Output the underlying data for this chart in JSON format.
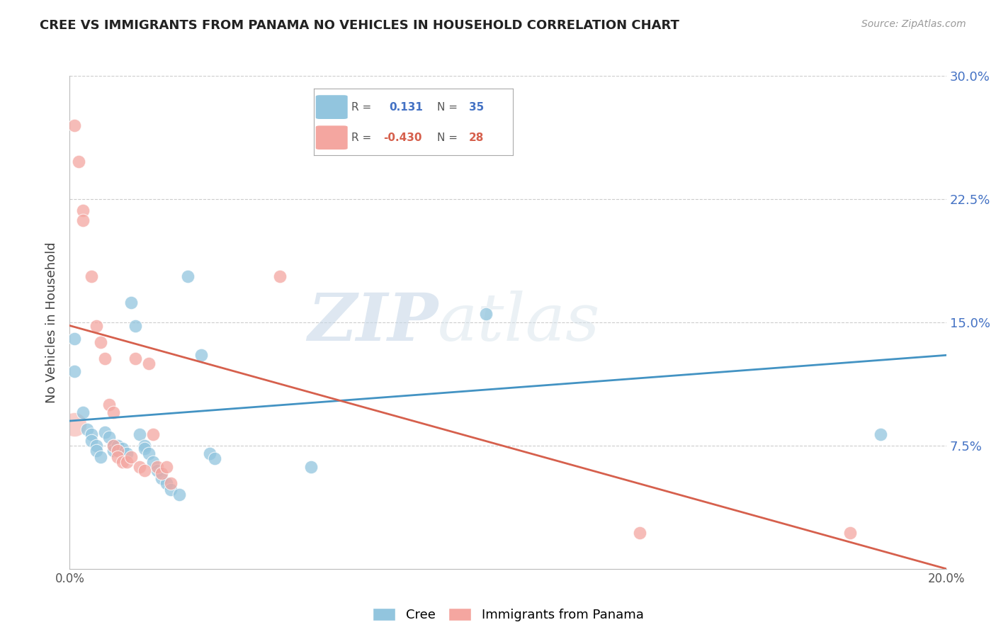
{
  "title": "CREE VS IMMIGRANTS FROM PANAMA NO VEHICLES IN HOUSEHOLD CORRELATION CHART",
  "source": "Source: ZipAtlas.com",
  "ylabel": "No Vehicles in Household",
  "xlim": [
    0.0,
    0.2
  ],
  "ylim": [
    0.0,
    0.3
  ],
  "yticks": [
    0.0,
    0.075,
    0.15,
    0.225,
    0.3
  ],
  "ytick_labels": [
    "",
    "7.5%",
    "15.0%",
    "22.5%",
    "30.0%"
  ],
  "blue_color": "#92c5de",
  "pink_color": "#f4a6a0",
  "line_blue": "#4393c3",
  "line_pink": "#d6604d",
  "watermark_zip": "ZIP",
  "watermark_atlas": "atlas",
  "blue_dots": [
    [
      0.001,
      0.14
    ],
    [
      0.001,
      0.12
    ],
    [
      0.003,
      0.095
    ],
    [
      0.004,
      0.085
    ],
    [
      0.005,
      0.082
    ],
    [
      0.005,
      0.078
    ],
    [
      0.006,
      0.075
    ],
    [
      0.006,
      0.072
    ],
    [
      0.007,
      0.068
    ],
    [
      0.008,
      0.083
    ],
    [
      0.009,
      0.08
    ],
    [
      0.01,
      0.075
    ],
    [
      0.01,
      0.072
    ],
    [
      0.011,
      0.075
    ],
    [
      0.012,
      0.073
    ],
    [
      0.013,
      0.07
    ],
    [
      0.014,
      0.162
    ],
    [
      0.015,
      0.148
    ],
    [
      0.016,
      0.082
    ],
    [
      0.017,
      0.075
    ],
    [
      0.017,
      0.073
    ],
    [
      0.018,
      0.07
    ],
    [
      0.019,
      0.065
    ],
    [
      0.02,
      0.06
    ],
    [
      0.021,
      0.055
    ],
    [
      0.022,
      0.052
    ],
    [
      0.023,
      0.048
    ],
    [
      0.025,
      0.045
    ],
    [
      0.027,
      0.178
    ],
    [
      0.03,
      0.13
    ],
    [
      0.032,
      0.07
    ],
    [
      0.033,
      0.067
    ],
    [
      0.055,
      0.062
    ],
    [
      0.095,
      0.155
    ],
    [
      0.185,
      0.082
    ]
  ],
  "pink_dots": [
    [
      0.001,
      0.27
    ],
    [
      0.002,
      0.248
    ],
    [
      0.003,
      0.218
    ],
    [
      0.003,
      0.212
    ],
    [
      0.005,
      0.178
    ],
    [
      0.006,
      0.148
    ],
    [
      0.007,
      0.138
    ],
    [
      0.008,
      0.128
    ],
    [
      0.009,
      0.1
    ],
    [
      0.01,
      0.095
    ],
    [
      0.01,
      0.075
    ],
    [
      0.011,
      0.072
    ],
    [
      0.011,
      0.068
    ],
    [
      0.012,
      0.065
    ],
    [
      0.013,
      0.065
    ],
    [
      0.014,
      0.068
    ],
    [
      0.015,
      0.128
    ],
    [
      0.016,
      0.062
    ],
    [
      0.017,
      0.06
    ],
    [
      0.018,
      0.125
    ],
    [
      0.019,
      0.082
    ],
    [
      0.02,
      0.062
    ],
    [
      0.021,
      0.058
    ],
    [
      0.022,
      0.062
    ],
    [
      0.023,
      0.052
    ],
    [
      0.048,
      0.178
    ],
    [
      0.13,
      0.022
    ],
    [
      0.178,
      0.022
    ]
  ],
  "blue_line_x": [
    0.0,
    0.2
  ],
  "blue_line_y": [
    0.09,
    0.13
  ],
  "pink_line_x": [
    0.0,
    0.2
  ],
  "pink_line_y": [
    0.148,
    0.0
  ]
}
